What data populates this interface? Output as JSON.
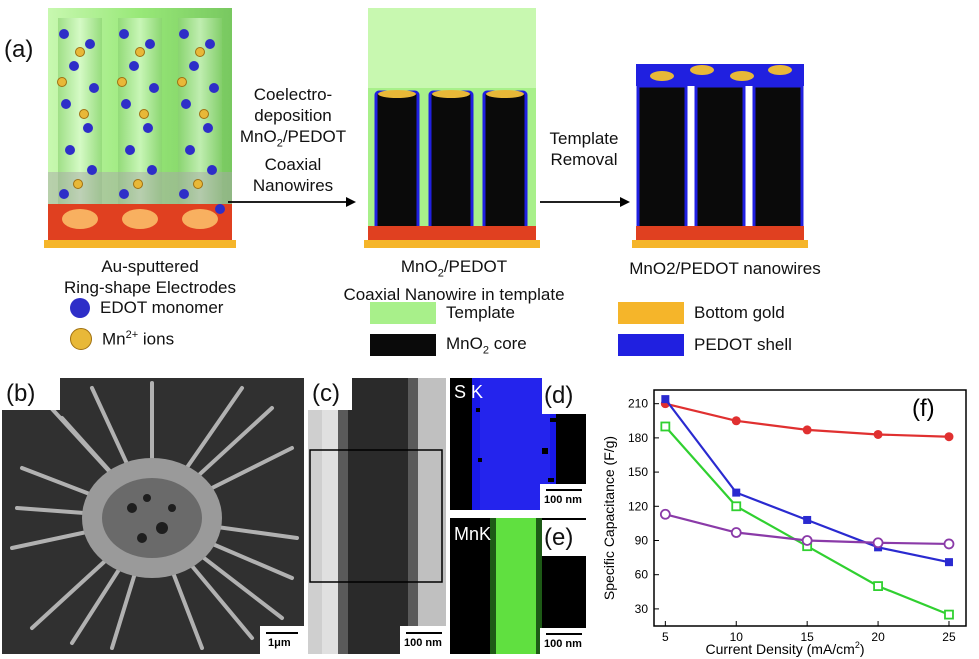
{
  "panels": {
    "a": "(a)",
    "b": "(b)",
    "c": "(c)",
    "d": "(d)",
    "e": "(e)",
    "f": "(f)"
  },
  "schematic": {
    "step1_lines": [
      "Coelectro-",
      "deposition",
      "MnO",
      "/PEDOT",
      "Coaxial",
      "Nanowires"
    ],
    "step2_lines": [
      "Template",
      "Removal"
    ],
    "caption1_lines": [
      "Au-sputtered",
      "Ring-shape Electrodes"
    ],
    "caption2_lines": [
      "MnO",
      "/PEDOT",
      "Coaxial Nanowire in template"
    ],
    "caption3": "MnO2/PEDOT nanowires",
    "sub2": "2"
  },
  "legend": {
    "edot": "EDOT monomer",
    "mn_prefix": "Mn",
    "mn_sup": "2+",
    "mn_suffix": " ions",
    "template": "Template",
    "mno2_prefix": "MnO",
    "mno2_sub": "2",
    "mno2_suffix": " core",
    "bottom_gold": "Bottom gold",
    "pedot_shell": "PEDOT shell",
    "colors": {
      "edot": "#2e2ec8",
      "mn": "#e8b838",
      "template": "#a8f08a",
      "core": "#0a0a0a",
      "gold": "#f5b52a",
      "shell": "#2020e0"
    }
  },
  "micrographs": {
    "b_scale": "1μm",
    "c_scale": "100 nm",
    "d_label": "S K",
    "d_scale": "100 nm",
    "e_label": "MnK",
    "e_scale": "100 nm"
  },
  "chart_data": {
    "type": "line",
    "xlabel": "Current Density (mA/cm",
    "xlabel_sup": "2",
    "xlabel_end": ")",
    "ylabel": "Specific Capacitance (F/g)",
    "x": [
      5,
      10,
      15,
      20,
      25
    ],
    "xlim": [
      4.2,
      26.2
    ],
    "ylim": [
      15,
      222
    ],
    "yticks": [
      30,
      60,
      90,
      120,
      150,
      180,
      210
    ],
    "xticks": [
      5,
      10,
      15,
      20,
      25
    ],
    "series": [
      {
        "color": "#e03030",
        "marker": "filled-circle",
        "values": [
          210,
          195,
          187,
          183,
          181
        ]
      },
      {
        "color": "#2a2ad0",
        "marker": "filled-square",
        "values": [
          214,
          132,
          108,
          84,
          71
        ]
      },
      {
        "color": "#30d030",
        "marker": "open-square",
        "values": [
          190,
          120,
          85,
          50,
          25
        ]
      },
      {
        "color": "#8a3aa8",
        "marker": "open-circle",
        "values": [
          113,
          97,
          90,
          88,
          87
        ]
      }
    ]
  }
}
